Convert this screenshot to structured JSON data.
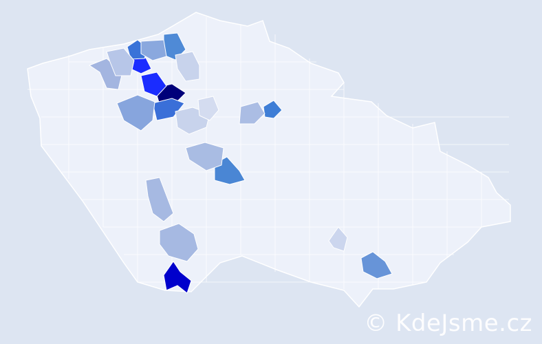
{
  "watermark": "© KdeJsme.cz",
  "colors": {
    "background": "#dde5f2",
    "country_fill": "#edf1fa",
    "border": "#ffffff"
  },
  "districts": [
    {
      "level": "highest",
      "color": "#00007a"
    },
    {
      "level": "very-high",
      "color": "#1a2cff"
    },
    {
      "level": "very-high",
      "color": "#1a2cff"
    },
    {
      "level": "very-high",
      "color": "#0000cc"
    },
    {
      "level": "high",
      "color": "#3a6fd8"
    },
    {
      "level": "high",
      "color": "#3a73d8"
    },
    {
      "level": "high",
      "color": "#3f7ed6"
    },
    {
      "level": "medium-high",
      "color": "#4a86d4"
    },
    {
      "level": "medium-high",
      "color": "#4f8ad6"
    },
    {
      "level": "medium",
      "color": "#6794d8"
    },
    {
      "level": "medium",
      "color": "#87a5dd"
    },
    {
      "level": "medium",
      "color": "#8aa8de"
    },
    {
      "level": "low",
      "color": "#a6b9e2"
    },
    {
      "level": "low",
      "color": "#a6b9e2"
    },
    {
      "level": "low",
      "color": "#a9bce3"
    },
    {
      "level": "low",
      "color": "#abbde4"
    },
    {
      "level": "low",
      "color": "#a3b5e0"
    },
    {
      "level": "low",
      "color": "#b7c6e8"
    },
    {
      "level": "very-low",
      "color": "#c8d3ec"
    },
    {
      "level": "very-low",
      "color": "#c8d3ec"
    },
    {
      "level": "very-low",
      "color": "#ccd6ee"
    },
    {
      "level": "very-low",
      "color": "#d4dcf0"
    }
  ]
}
